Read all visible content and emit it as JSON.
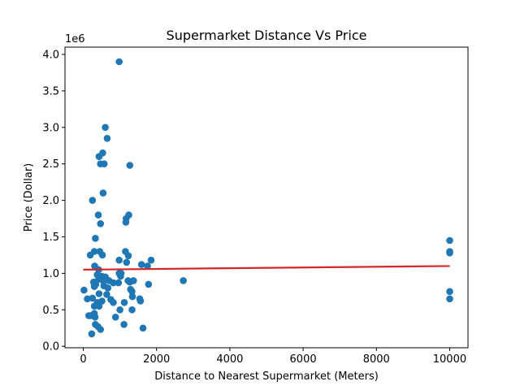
{
  "chart_data": {
    "type": "scatter",
    "title": "Supermarket Distance Vs Price",
    "xlabel": "Distance to Nearest Supermarket (Meters)",
    "ylabel": "Price (Dollar)",
    "y_scale_label": "1e6",
    "xlim": [
      -500,
      10500
    ],
    "ylim": [
      -0.02,
      4.1
    ],
    "x_ticks": [
      0,
      2000,
      4000,
      6000,
      8000,
      10000
    ],
    "x_tick_labels": [
      "0",
      "2000",
      "4000",
      "6000",
      "8000",
      "10000"
    ],
    "y_ticks": [
      0.0,
      0.5,
      1.0,
      1.5,
      2.0,
      2.5,
      3.0,
      3.5,
      4.0
    ],
    "y_tick_labels": [
      "0.0",
      "0.5",
      "1.0",
      "1.5",
      "2.0",
      "2.5",
      "3.0",
      "3.5",
      "4.0"
    ],
    "grid": false,
    "marker_color": "#1f77b4",
    "line_color": "#d62728",
    "points": [
      [
        980,
        3.9
      ],
      [
        600,
        3.0
      ],
      [
        650,
        2.85
      ],
      [
        250,
        2.0
      ],
      [
        430,
        2.6
      ],
      [
        530,
        2.65
      ],
      [
        470,
        2.5
      ],
      [
        570,
        2.5
      ],
      [
        1270,
        2.48
      ],
      [
        540,
        2.1
      ],
      [
        410,
        1.8
      ],
      [
        1240,
        1.8
      ],
      [
        1170,
        1.75
      ],
      [
        1160,
        1.7
      ],
      [
        470,
        1.68
      ],
      [
        330,
        1.48
      ],
      [
        300,
        1.3
      ],
      [
        190,
        1.25
      ],
      [
        450,
        1.3
      ],
      [
        520,
        1.25
      ],
      [
        1150,
        1.3
      ],
      [
        1230,
        1.24
      ],
      [
        980,
        1.18
      ],
      [
        1850,
        1.18
      ],
      [
        1590,
        1.12
      ],
      [
        1750,
        1.1
      ],
      [
        310,
        1.1
      ],
      [
        1180,
        1.15
      ],
      [
        420,
        1.05
      ],
      [
        380,
        0.98
      ],
      [
        500,
        0.96
      ],
      [
        600,
        0.95
      ],
      [
        980,
        1.0
      ],
      [
        1030,
        1.0
      ],
      [
        1020,
        0.96
      ],
      [
        280,
        0.88
      ],
      [
        340,
        0.85
      ],
      [
        420,
        0.92
      ],
      [
        470,
        0.95
      ],
      [
        540,
        0.9
      ],
      [
        620,
        0.92
      ],
      [
        700,
        0.9
      ],
      [
        820,
        0.87
      ],
      [
        960,
        0.87
      ],
      [
        1220,
        0.9
      ],
      [
        1270,
        0.88
      ],
      [
        1370,
        0.9
      ],
      [
        1780,
        0.85
      ],
      [
        2730,
        0.9
      ],
      [
        300,
        0.82
      ],
      [
        560,
        0.83
      ],
      [
        670,
        0.8
      ],
      [
        1290,
        0.78
      ],
      [
        1330,
        0.75
      ],
      [
        20,
        0.77
      ],
      [
        110,
        0.65
      ],
      [
        250,
        0.66
      ],
      [
        430,
        0.72
      ],
      [
        640,
        0.71
      ],
      [
        750,
        0.64
      ],
      [
        820,
        0.6
      ],
      [
        510,
        0.62
      ],
      [
        380,
        0.6
      ],
      [
        300,
        0.55
      ],
      [
        430,
        0.55
      ],
      [
        1120,
        0.6
      ],
      [
        1340,
        0.68
      ],
      [
        1540,
        0.65
      ],
      [
        1560,
        0.62
      ],
      [
        1000,
        0.5
      ],
      [
        1330,
        0.5
      ],
      [
        300,
        0.45
      ],
      [
        150,
        0.42
      ],
      [
        200,
        0.42
      ],
      [
        320,
        0.4
      ],
      [
        880,
        0.4
      ],
      [
        330,
        0.3
      ],
      [
        1110,
        0.3
      ],
      [
        400,
        0.27
      ],
      [
        470,
        0.23
      ],
      [
        1630,
        0.25
      ],
      [
        230,
        0.17
      ],
      [
        10000,
        1.45
      ],
      [
        10000,
        1.3
      ],
      [
        10000,
        1.28
      ],
      [
        10000,
        0.75
      ],
      [
        10000,
        0.65
      ]
    ],
    "trend_line": {
      "x": [
        0,
        10000
      ],
      "y": [
        1.05,
        1.1
      ]
    }
  }
}
